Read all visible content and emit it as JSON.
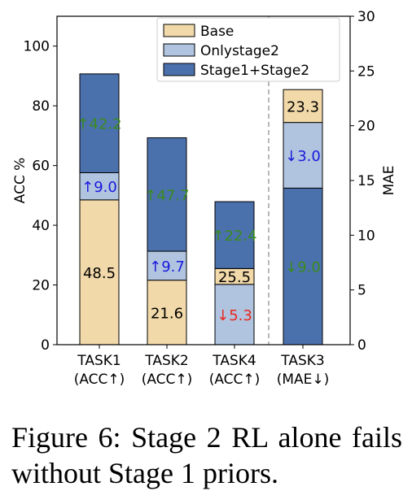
{
  "chart_data": {
    "type": "bar",
    "categories": [
      "TASK1\n(ACC↑)",
      "TASK2\n(ACC↑)",
      "TASK4\n(ACC↑)",
      "TASK3\n(MAE↓)"
    ],
    "left_axis": {
      "label": "ACC %",
      "ylim": [
        0,
        110
      ],
      "ticks": [
        0,
        20,
        40,
        60,
        80,
        100
      ]
    },
    "right_axis": {
      "label": "MAE",
      "ylim": [
        0,
        30
      ],
      "ticks": [
        0,
        5,
        10,
        15,
        20,
        25,
        30
      ]
    },
    "legend": {
      "placement": "top-right",
      "entries": [
        {
          "name": "Base",
          "color": "#f2d9aa"
        },
        {
          "name": "Onlystage2",
          "color": "#b0c4e0"
        },
        {
          "name": "Stage1+Stage2",
          "color": "#4b71ad"
        }
      ]
    },
    "bars": [
      {
        "category": "TASK1\n(ACC↑)",
        "axis": "left",
        "segments": [
          {
            "series": "Base",
            "from": 0,
            "to": 48.5,
            "label": "48.5",
            "label_color": "#000000"
          },
          {
            "series": "Onlystage2",
            "from": 48.5,
            "to": 57.6,
            "label": "↑9.0",
            "label_color": "#1a1adb"
          },
          {
            "series": "Stage1+Stage2",
            "from": 57.6,
            "to": 90.7,
            "label": "↑42.2",
            "label_color": "#3a8a1f"
          }
        ]
      },
      {
        "category": "TASK2\n(ACC↑)",
        "axis": "left",
        "segments": [
          {
            "series": "Base",
            "from": 0,
            "to": 21.6,
            "label": "21.6",
            "label_color": "#000000"
          },
          {
            "series": "Onlystage2",
            "from": 21.6,
            "to": 31.3,
            "label": "↑9.7",
            "label_color": "#1a1adb"
          },
          {
            "series": "Stage1+Stage2",
            "from": 31.3,
            "to": 69.3,
            "label": "↑47.7",
            "label_color": "#3a8a1f"
          }
        ]
      },
      {
        "category": "TASK4\n(ACC↑)",
        "axis": "left",
        "segments": [
          {
            "series": "Onlystage2",
            "from": 0,
            "to": 20.2,
            "label": "↓5.3",
            "label_color": "#e8281e"
          },
          {
            "series": "Base",
            "from": 20.2,
            "to": 25.5,
            "label": "25.5",
            "label_color": "#000000"
          },
          {
            "series": "Stage1+Stage2",
            "from": 25.5,
            "to": 47.9,
            "label": "↑22.4",
            "label_color": "#3a8a1f"
          }
        ]
      },
      {
        "category": "TASK3\n(MAE↓)",
        "axis": "right",
        "segments": [
          {
            "series": "Stage1+Stage2",
            "from": 0,
            "to": 14.3,
            "label": "↓9.0",
            "label_color": "#3a8a1f"
          },
          {
            "series": "Onlystage2",
            "from": 14.3,
            "to": 20.3,
            "label": "↓3.0",
            "label_color": "#1a1adb"
          },
          {
            "series": "Base",
            "from": 20.3,
            "to": 23.3,
            "label": "23.3",
            "label_color": "#000000"
          }
        ]
      }
    ],
    "divider_before_category": 3,
    "grid": false
  },
  "caption": "Figure 6:  Stage 2 RL alone fails without Stage 1 priors."
}
